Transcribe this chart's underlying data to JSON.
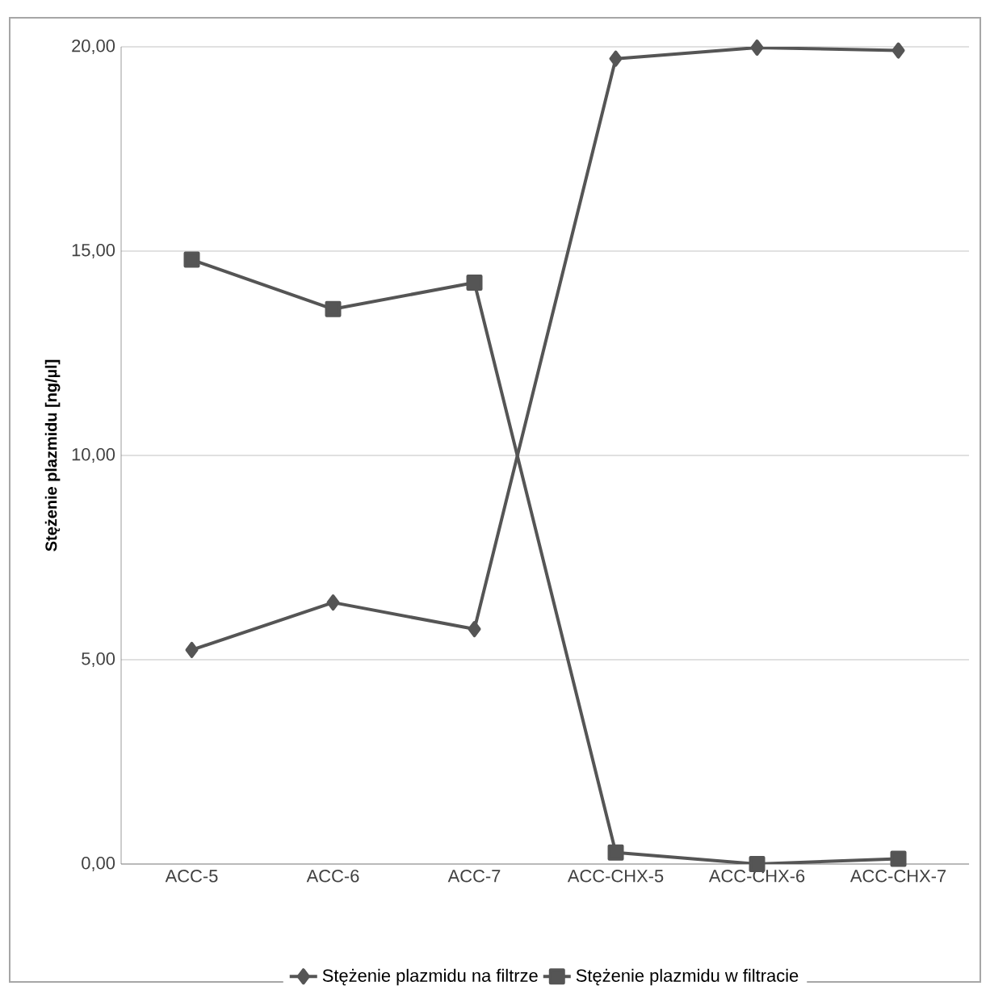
{
  "chart_data": {
    "type": "line",
    "ylabel": "Stężenie plazmidu [ng/µl]",
    "categories": [
      "ACC-5",
      "ACC-6",
      "ACC-7",
      "ACC-CHX-5",
      "ACC-CHX-6",
      "ACC-CHX-7"
    ],
    "series": [
      {
        "name": "Stężenie plazmidu na filtrze",
        "color": "#555555",
        "marker": "diamond",
        "values": [
          5.24,
          6.4,
          5.75,
          19.71,
          19.98,
          19.91
        ]
      },
      {
        "name": "Stężenie plazmidu w filtracie",
        "color": "#555555",
        "marker": "square",
        "values": [
          14.79,
          13.58,
          14.23,
          0.28,
          0.0,
          0.13
        ]
      }
    ],
    "ylim": [
      0,
      20
    ],
    "yticks": [
      {
        "value": 0,
        "label": "0,00"
      },
      {
        "value": 5,
        "label": "5,00"
      },
      {
        "value": 10,
        "label": "10,00"
      },
      {
        "value": 15,
        "label": "15,00"
      },
      {
        "value": 20,
        "label": "20,00"
      }
    ],
    "grid": "y",
    "legend": "bottom",
    "line_style": "solid"
  }
}
